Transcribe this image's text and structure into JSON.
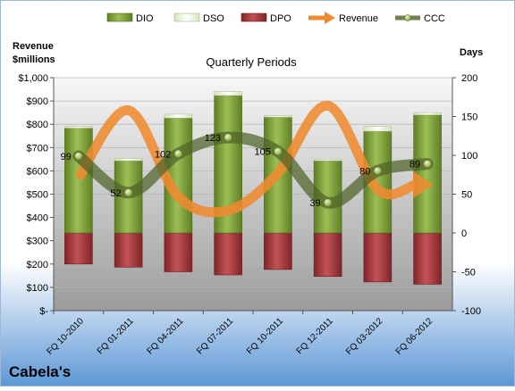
{
  "chart_data": {
    "type": "bar",
    "company": "Cabela's",
    "title": "Quarterly Periods",
    "y_left_label": [
      "Revenue",
      "$millions"
    ],
    "y_right_label": "Days",
    "y_left_ticks": [
      "$-",
      "$100",
      "$200",
      "$300",
      "$400",
      "$500",
      "$600",
      "$700",
      "$800",
      "$900",
      "$1,000"
    ],
    "y_left_range": [
      0,
      1000
    ],
    "y_right_ticks": [
      "-100",
      "-50",
      "0",
      "50",
      "100",
      "150",
      "200"
    ],
    "y_right_range": [
      -100,
      200
    ],
    "categories": [
      "FQ 10-2010",
      "FQ 01-2011",
      "FQ 04-2011",
      "FQ 07-2011",
      "FQ 10-2011",
      "FQ 12-2011",
      "FQ 03-2012",
      "FQ 06-2012"
    ],
    "series": [
      {
        "name": "DIO",
        "axis": "right",
        "kind": "bar",
        "values": [
          135,
          93,
          148,
          177,
          149,
          93,
          131,
          152
        ]
      },
      {
        "name": "DSO",
        "axis": "right",
        "kind": "bar",
        "values": [
          2,
          3,
          5,
          5,
          2,
          2,
          6,
          3
        ]
      },
      {
        "name": "DPO",
        "axis": "right",
        "kind": "bar",
        "values": [
          -40,
          -44,
          -50,
          -54,
          -47,
          -56,
          -63,
          -66
        ]
      },
      {
        "name": "Revenue",
        "axis": "left",
        "kind": "line",
        "values": [
          570,
          860,
          490,
          430,
          590,
          880,
          520,
          540
        ]
      },
      {
        "name": "CCC",
        "axis": "right",
        "kind": "line",
        "values": [
          99,
          52,
          102,
          123,
          105,
          39,
          80,
          89
        ]
      }
    ],
    "ccc_labels": [
      "99",
      "52",
      "102",
      "123",
      "105",
      "39",
      "80",
      "89"
    ],
    "legend_position": "top",
    "grid": true,
    "colors": {
      "dio": "#8fb04a",
      "dio_dark": "#4f6a1d",
      "dso": "#eef5df",
      "dpo": "#b5454b",
      "dpo_dark": "#6d1e22",
      "revenue": "#f08a30",
      "ccc": "#4f6228",
      "plot_bg_top": "#f7f7f7",
      "plot_bg_bottom": "#9c9c9c",
      "page_bg_top": "#ffffff",
      "page_bg_bottom": "#5d97d6"
    }
  }
}
